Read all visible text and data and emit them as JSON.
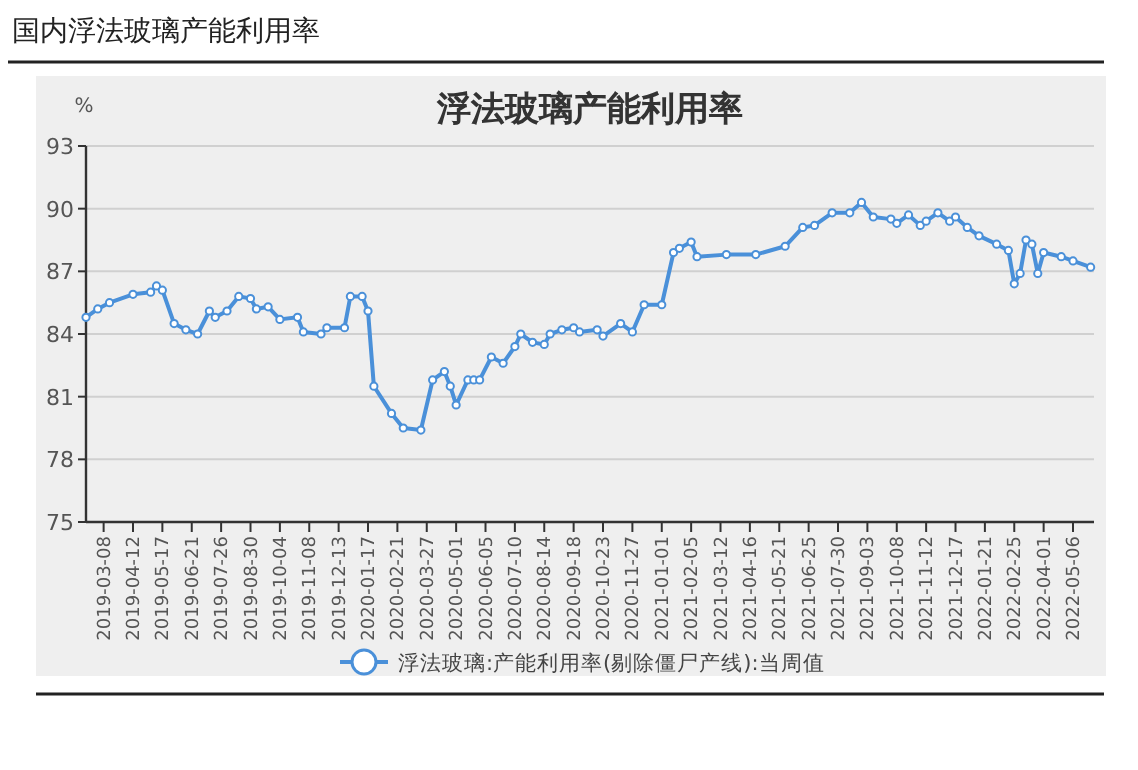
{
  "chart_data": {
    "type": "line",
    "title": "国内浮法玻璃产能利用率",
    "subtitle": "浮法玻璃产能利用率",
    "ylabel": "%",
    "x": [
      "2019-02-15",
      "2019-03-01",
      "2019-03-15",
      "2019-04-12",
      "2019-05-03",
      "2019-05-10",
      "2019-05-17",
      "2019-05-31",
      "2019-06-14",
      "2019-06-28",
      "2019-07-12",
      "2019-07-19",
      "2019-08-02",
      "2019-08-16",
      "2019-08-30",
      "2019-09-06",
      "2019-09-20",
      "2019-10-04",
      "2019-10-25",
      "2019-11-01",
      "2019-11-22",
      "2019-11-29",
      "2019-12-20",
      "2019-12-27",
      "2020-01-10",
      "2020-01-17",
      "2020-01-24",
      "2020-02-14",
      "2020-02-28",
      "2020-03-20",
      "2020-04-03",
      "2020-04-17",
      "2020-04-24",
      "2020-05-01",
      "2020-05-15",
      "2020-05-22",
      "2020-05-29",
      "2020-06-12",
      "2020-06-26",
      "2020-07-10",
      "2020-07-17",
      "2020-07-31",
      "2020-08-14",
      "2020-08-21",
      "2020-09-04",
      "2020-09-18",
      "2020-09-25",
      "2020-10-16",
      "2020-10-23",
      "2020-11-13",
      "2020-11-27",
      "2020-12-11",
      "2021-01-01",
      "2021-01-15",
      "2021-01-22",
      "2021-02-05",
      "2021-02-12",
      "2021-03-19",
      "2021-04-23",
      "2021-05-28",
      "2021-06-18",
      "2021-07-02",
      "2021-07-23",
      "2021-08-13",
      "2021-08-27",
      "2021-09-10",
      "2021-10-01",
      "2021-10-08",
      "2021-10-22",
      "2021-11-05",
      "2021-11-12",
      "2021-11-26",
      "2021-12-10",
      "2021-12-17",
      "2021-12-31",
      "2022-01-14",
      "2022-02-04",
      "2022-02-18",
      "2022-02-25",
      "2022-03-04",
      "2022-03-11",
      "2022-03-18",
      "2022-03-25",
      "2022-04-01",
      "2022-04-22",
      "2022-05-06",
      "2022-05-27"
    ],
    "series": [
      {
        "name": "浮法玻璃:产能利用率(剔除僵尸产线):当周值",
        "color": "#4a90d9",
        "values": [
          84.8,
          85.2,
          85.5,
          85.9,
          86.0,
          86.3,
          86.1,
          84.5,
          84.2,
          84.0,
          85.1,
          84.8,
          85.1,
          85.8,
          85.7,
          85.2,
          85.3,
          84.7,
          84.8,
          84.1,
          84.0,
          84.3,
          84.3,
          85.8,
          85.8,
          85.1,
          81.5,
          80.2,
          79.5,
          79.4,
          81.8,
          82.2,
          81.5,
          80.6,
          81.8,
          81.8,
          81.8,
          82.9,
          82.6,
          83.4,
          84.0,
          83.6,
          83.5,
          84.0,
          84.2,
          84.3,
          84.1,
          84.2,
          83.9,
          84.5,
          84.1,
          85.4,
          85.4,
          87.9,
          88.1,
          88.4,
          87.7,
          87.8,
          87.8,
          88.2,
          89.1,
          89.2,
          89.8,
          89.8,
          90.3,
          89.6,
          89.5,
          89.3,
          89.7,
          89.2,
          89.4,
          89.8,
          89.4,
          89.6,
          89.1,
          88.7,
          88.3,
          88.0,
          86.4,
          86.9,
          88.5,
          88.3,
          86.9,
          87.9,
          87.7,
          87.5,
          87.2
        ]
      }
    ],
    "xlim": [
      "2019-02-15",
      "2022-05-31"
    ],
    "xticks": [
      "2019-03-08",
      "2019-04-12",
      "2019-05-17",
      "2019-06-21",
      "2019-07-26",
      "2019-08-30",
      "2019-10-04",
      "2019-11-08",
      "2019-12-13",
      "2020-01-17",
      "2020-02-21",
      "2020-03-27",
      "2020-05-01",
      "2020-06-05",
      "2020-07-10",
      "2020-08-14",
      "2020-09-18",
      "2020-10-23",
      "2020-11-27",
      "2021-01-01",
      "2021-02-05",
      "2021-03-12",
      "2021-04-16",
      "2021-05-21",
      "2021-06-25",
      "2021-07-30",
      "2021-09-03",
      "2021-10-08",
      "2021-11-12",
      "2021-12-17",
      "2022-01-21",
      "2022-02-25",
      "2022-04-01",
      "2022-05-06"
    ],
    "ylim": [
      75,
      93
    ],
    "yticks": [
      75,
      78,
      81,
      84,
      87,
      90,
      93
    ],
    "grid": "y",
    "legend": "bottom",
    "marker": "circle",
    "line_style": "solid"
  }
}
